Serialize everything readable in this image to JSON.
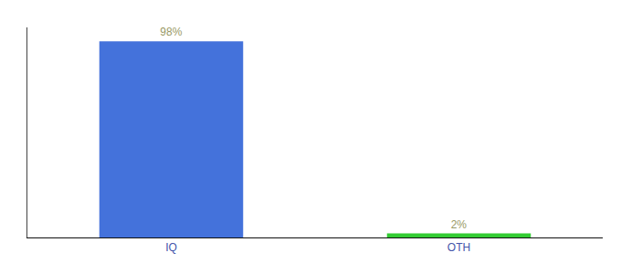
{
  "chart_data": {
    "type": "bar",
    "categories": [
      "IQ",
      "OTH"
    ],
    "values": [
      98,
      2
    ],
    "value_labels": [
      "98%",
      "2%"
    ],
    "colors": [
      "#4472DB",
      "#33CC33"
    ],
    "ylim": [
      0,
      105
    ],
    "yticks": [],
    "data_labels": true,
    "tick_labels": "x",
    "grid": false
  }
}
